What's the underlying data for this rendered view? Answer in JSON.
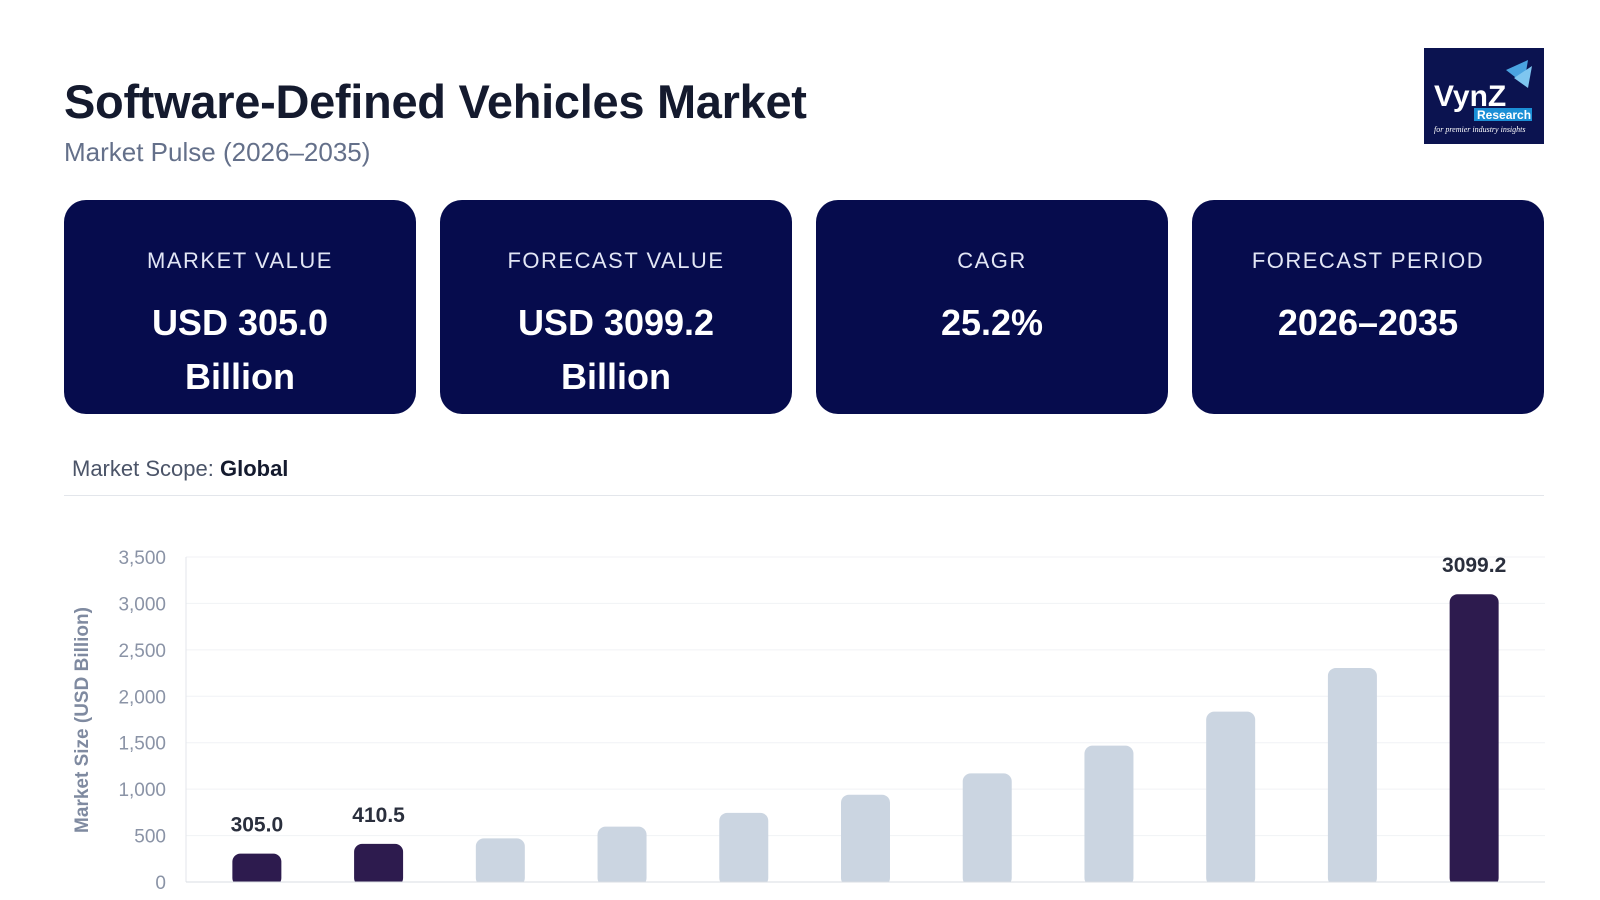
{
  "header": {
    "title": "Software-Defined Vehicles Market",
    "subtitle": "Market Pulse (2026–2035)"
  },
  "logo": {
    "text": "VynZ",
    "sub": "Research",
    "tagline": "for premier industry insights"
  },
  "cards": [
    {
      "label": "MARKET VALUE",
      "value": "USD 305.0 Billion"
    },
    {
      "label": "FORECAST VALUE",
      "value": "USD 3099.2 Billion"
    },
    {
      "label": "CAGR",
      "value": "25.2%"
    },
    {
      "label": "FORECAST PERIOD",
      "value": "2026–2035"
    }
  ],
  "scope": {
    "label": "Market Scope:",
    "value": "Global"
  },
  "colors": {
    "card": "#060c4d",
    "highlight_bar": "#2d1b4e",
    "bar": "#cbd5e1"
  },
  "chart_data": {
    "type": "bar",
    "title": "",
    "xlabel": "",
    "ylabel": "Market Size (USD Billion)",
    "ylim": [
      0,
      3500
    ],
    "yticks": [
      "0",
      "500",
      "1,000",
      "1,500",
      "2,000",
      "2,500",
      "3,000",
      "3,500"
    ],
    "grid": true,
    "values": [
      305.0,
      410.5,
      470,
      596,
      745,
      940,
      1170,
      1468,
      1835,
      2305,
      3099.2
    ],
    "highlighted": [
      true,
      true,
      false,
      false,
      false,
      false,
      false,
      false,
      false,
      false,
      true
    ],
    "data_labels": [
      "305.0",
      "410.5",
      "",
      "",
      "",
      "",
      "",
      "",
      "",
      "",
      "3099.2"
    ]
  }
}
